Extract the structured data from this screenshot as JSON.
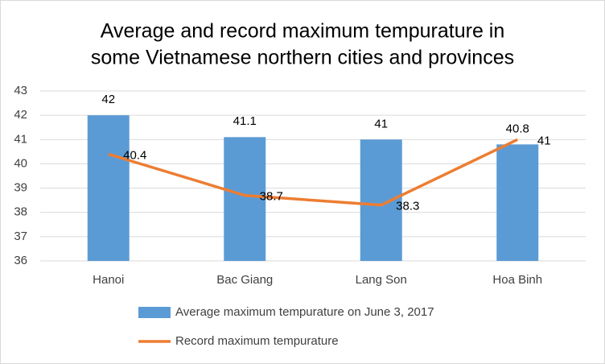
{
  "chart_data": {
    "type": "bar",
    "title": [
      "Average and record maximum tempurature in",
      "some Vietnamese northern cities and provinces"
    ],
    "categories": [
      "Hanoi",
      "Bac Giang",
      "Lang Son",
      "Hoa Binh"
    ],
    "series": [
      {
        "name": "Average maximum tempurature on June 3, 2017",
        "type": "bar",
        "color": "#5b9bd5",
        "values": [
          42,
          41.1,
          41,
          40.8
        ]
      },
      {
        "name": "Record maximum tempurature",
        "type": "line",
        "color": "#ed7d31",
        "values": [
          40.4,
          38.7,
          38.3,
          41
        ]
      }
    ],
    "ylim": [
      36,
      43
    ],
    "yticks": [
      36,
      37,
      38,
      39,
      40,
      41,
      42,
      43
    ],
    "grid": true
  }
}
